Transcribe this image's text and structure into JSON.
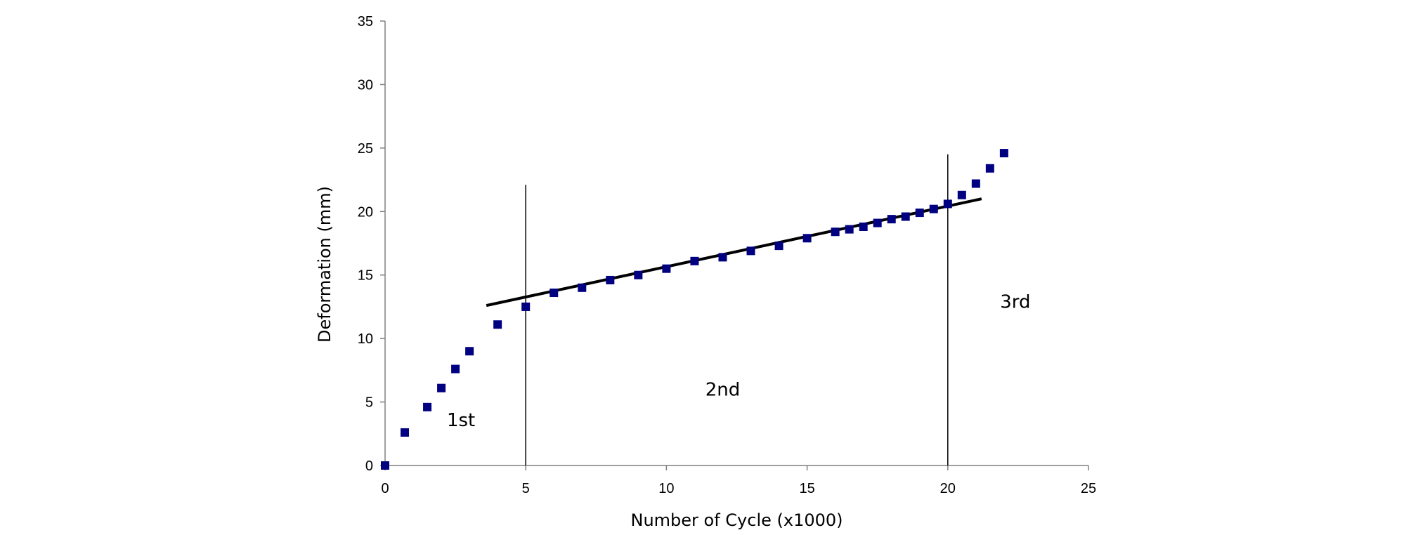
{
  "chart_data": {
    "type": "scatter",
    "title": "",
    "xlabel": "Number of Cycle (x1000)",
    "ylabel": "Deformation (mm)",
    "xlim": [
      0,
      25
    ],
    "ylim": [
      0,
      35
    ],
    "x_ticks": [
      0,
      5,
      10,
      15,
      20,
      25
    ],
    "y_ticks": [
      0,
      5,
      10,
      15,
      20,
      25,
      30,
      35
    ],
    "grid": false,
    "legend": "none",
    "marker_color": "#000080",
    "series": [
      {
        "points": [
          [
            0,
            0
          ],
          [
            0.7,
            2.6
          ],
          [
            1.5,
            4.6
          ],
          [
            2,
            6.1
          ],
          [
            2.5,
            7.6
          ],
          [
            3,
            9.0
          ],
          [
            4,
            11.1
          ],
          [
            5,
            12.5
          ],
          [
            6,
            13.6
          ],
          [
            7,
            14.0
          ],
          [
            8,
            14.6
          ],
          [
            9,
            15.0
          ],
          [
            10,
            15.5
          ],
          [
            11,
            16.1
          ],
          [
            12,
            16.4
          ],
          [
            13,
            16.9
          ],
          [
            14,
            17.3
          ],
          [
            15,
            17.9
          ],
          [
            16,
            18.4
          ],
          [
            16.5,
            18.6
          ],
          [
            17,
            18.8
          ],
          [
            17.5,
            19.1
          ],
          [
            18,
            19.4
          ],
          [
            18.5,
            19.6
          ],
          [
            19,
            19.9
          ],
          [
            19.5,
            20.2
          ],
          [
            20,
            20.6
          ],
          [
            20.5,
            21.3
          ],
          [
            21,
            22.2
          ],
          [
            21.5,
            23.4
          ],
          [
            22,
            24.6
          ]
        ]
      }
    ],
    "trend_line": {
      "x": [
        3.6,
        21.2
      ],
      "y": [
        12.6,
        21.0
      ],
      "color": "#000000"
    },
    "phase_lines": [
      {
        "x": 5,
        "y_range": [
          0,
          22.1
        ]
      },
      {
        "x": 20,
        "y_range": [
          0,
          24.5
        ]
      }
    ],
    "annotations": [
      {
        "text": "1st",
        "x": 2.7,
        "y": 3.1
      },
      {
        "text": "2nd",
        "x": 12.0,
        "y": 5.5
      },
      {
        "text": "3rd",
        "x": 22.4,
        "y": 12.4
      }
    ]
  }
}
